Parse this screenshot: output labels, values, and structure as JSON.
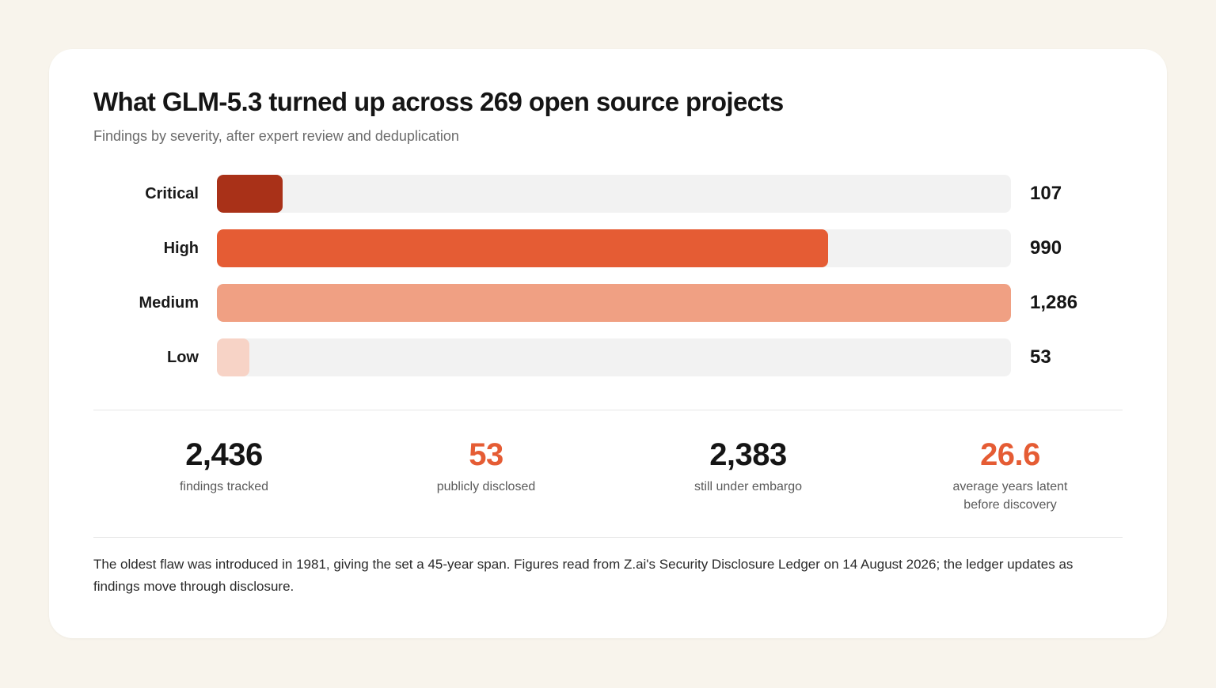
{
  "chart_data": {
    "type": "bar",
    "orientation": "horizontal",
    "title": "What GLM-5.3 turned up across 269 open source projects",
    "subtitle": "Findings by severity, after expert review and deduplication",
    "categories": [
      "Critical",
      "High",
      "Medium",
      "Low"
    ],
    "values": [
      107,
      990,
      1286,
      53
    ],
    "value_labels": [
      "107",
      "990",
      "1,286",
      "53"
    ],
    "colors": [
      "#a93118",
      "#e55c34",
      "#f0a083",
      "#f7d3c6"
    ],
    "xlim": [
      0,
      1286
    ],
    "grid": false,
    "legend": "none"
  },
  "stats": [
    {
      "value": "2,436",
      "label": "findings tracked",
      "accent": false
    },
    {
      "value": "53",
      "label": "publicly disclosed",
      "accent": true
    },
    {
      "value": "2,383",
      "label": "still under embargo",
      "accent": false
    },
    {
      "value": "26.6",
      "label": "average years latent before discovery",
      "label_line1": "average years latent",
      "label_line2": "before discovery",
      "accent": true
    }
  ],
  "footnote": "The oldest flaw was introduced in 1981, giving the set a 45-year span. Figures read from Z.ai's Security Disclosure Ledger on 14 August 2026; the ledger updates as findings move through disclosure.",
  "colors": {
    "background": "#f8f4ec",
    "card": "#ffffff",
    "track": "#f2f2f2",
    "accent": "#e55c34"
  }
}
